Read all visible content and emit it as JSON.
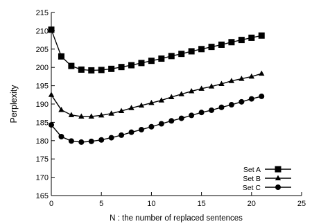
{
  "chart_data": {
    "type": "line",
    "title": "",
    "xlabel": "N : the number of replaced sentences",
    "ylabel": "Perplexity",
    "xlim": [
      0,
      25
    ],
    "ylim": [
      165,
      215
    ],
    "xticks": [
      0,
      5,
      10,
      15,
      20,
      25
    ],
    "yticks": [
      165,
      170,
      175,
      180,
      185,
      190,
      195,
      200,
      205,
      210,
      215
    ],
    "grid": false,
    "legend_position": "bottom-right",
    "x": [
      0,
      1,
      2,
      3,
      4,
      5,
      6,
      7,
      8,
      9,
      10,
      11,
      12,
      13,
      14,
      15,
      16,
      17,
      18,
      19,
      20,
      21
    ],
    "series": [
      {
        "name": "Set A",
        "marker": "square",
        "values": [
          210.3,
          203.0,
          200.4,
          199.4,
          199.2,
          199.3,
          199.6,
          200.1,
          200.6,
          201.2,
          201.8,
          202.4,
          203.1,
          203.7,
          204.4,
          205.0,
          205.6,
          206.2,
          206.9,
          207.5,
          208.1,
          208.7
        ]
      },
      {
        "name": "Set B",
        "marker": "triangle",
        "values": [
          192.5,
          188.4,
          187.0,
          186.6,
          186.6,
          186.9,
          187.4,
          188.1,
          188.9,
          189.6,
          190.3,
          191.0,
          191.9,
          192.7,
          193.5,
          194.2,
          194.8,
          195.5,
          196.3,
          196.9,
          197.5,
          198.3
        ]
      },
      {
        "name": "Set C",
        "marker": "circle",
        "values": [
          184.3,
          181.1,
          179.9,
          179.6,
          179.8,
          180.2,
          180.8,
          181.5,
          182.3,
          183.0,
          183.8,
          184.6,
          185.4,
          186.1,
          186.9,
          187.7,
          188.3,
          189.1,
          189.8,
          190.6,
          191.4,
          192.1
        ]
      }
    ]
  }
}
